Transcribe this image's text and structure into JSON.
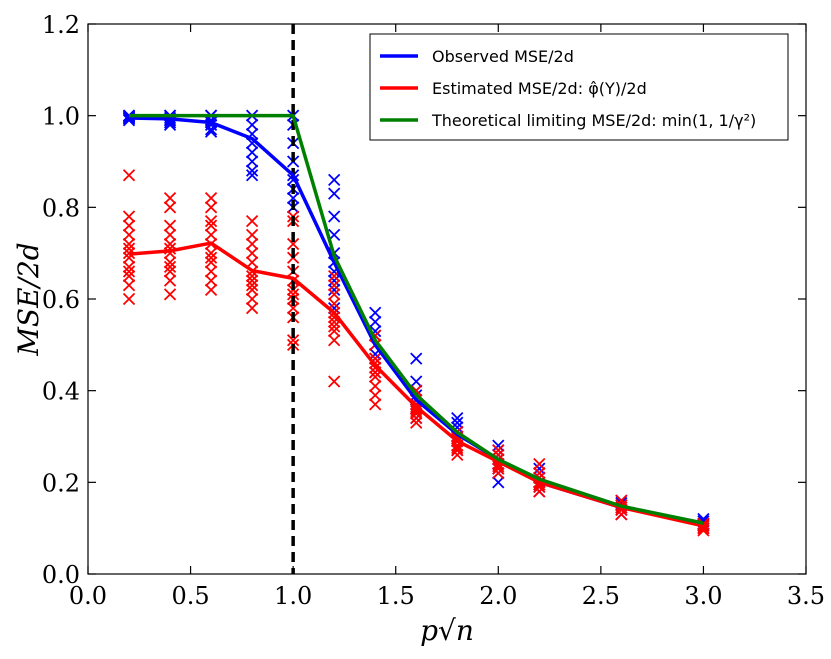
{
  "chart_data": {
    "type": "line",
    "title": "",
    "xlabel": "p√n",
    "ylabel": "MSE/2d",
    "xlim": [
      0.0,
      3.5
    ],
    "ylim": [
      0.0,
      1.2
    ],
    "xticks": [
      "0.0",
      "0.5",
      "1.0",
      "1.5",
      "2.0",
      "2.5",
      "3.0",
      "3.5"
    ],
    "yticks": [
      "0.0",
      "0.2",
      "0.4",
      "0.6",
      "0.8",
      "1.0",
      "1.2"
    ],
    "grid": false,
    "legend_position": "top-right",
    "vline": {
      "x": 1.0,
      "style": "dashed",
      "color": "#000000"
    },
    "x": [
      0.2,
      0.4,
      0.6,
      0.8,
      1.0,
      1.2,
      1.4,
      1.6,
      1.8,
      2.0,
      2.2,
      2.6,
      3.0
    ],
    "series": [
      {
        "name": "Observed MSE/2d",
        "legend_text": "Observed MSE/2d",
        "color": "#0000ff",
        "values": [
          0.995,
          0.993,
          0.985,
          0.95,
          0.87,
          0.68,
          0.5,
          0.38,
          0.305,
          0.25,
          0.2,
          0.145,
          0.11
        ],
        "scatter": [
          [
            0.99,
            1.0,
            0.995,
            0.998,
            0.993,
            1.0,
            0.997
          ],
          [
            0.985,
            1.0,
            0.99,
            0.995,
            0.98,
            1.0,
            0.99
          ],
          [
            0.97,
            1.0,
            0.99,
            0.98,
            0.965,
            1.0,
            0.985
          ],
          [
            0.87,
            0.9,
            0.94,
            0.96,
            0.98,
            1.0,
            0.92,
            0.88
          ],
          [
            0.8,
            0.84,
            0.87,
            0.9,
            0.94,
            0.98,
            1.0,
            0.82,
            0.86
          ],
          [
            0.58,
            0.62,
            0.66,
            0.7,
            0.74,
            0.78,
            0.83,
            0.86,
            0.64,
            0.68
          ],
          [
            0.44,
            0.47,
            0.5,
            0.53,
            0.55,
            0.57,
            0.48,
            0.52
          ],
          [
            0.34,
            0.36,
            0.38,
            0.4,
            0.42,
            0.47,
            0.37,
            0.39
          ],
          [
            0.27,
            0.29,
            0.31,
            0.32,
            0.33,
            0.34,
            0.3,
            0.28
          ],
          [
            0.2,
            0.22,
            0.24,
            0.26,
            0.27,
            0.28,
            0.23,
            0.25
          ],
          [
            0.18,
            0.19,
            0.2,
            0.21,
            0.22,
            0.23,
            0.195
          ],
          [
            0.13,
            0.14,
            0.15,
            0.155,
            0.16,
            0.145
          ],
          [
            0.1,
            0.105,
            0.11,
            0.115,
            0.12,
            0.108
          ]
        ]
      },
      {
        "name": "Estimated MSE/2d: φ̂(Y)/2d",
        "legend_text": "Estimated MSE/2d: φ̂(Y)/2d",
        "color": "#ff0000",
        "values": [
          0.698,
          0.705,
          0.722,
          0.662,
          0.645,
          0.57,
          0.455,
          0.365,
          0.29,
          0.245,
          0.2,
          0.145,
          0.105
        ],
        "scatter": [
          [
            0.6,
            0.63,
            0.65,
            0.67,
            0.69,
            0.7,
            0.72,
            0.74,
            0.76,
            0.78,
            0.87,
            0.66,
            0.71
          ],
          [
            0.61,
            0.64,
            0.66,
            0.68,
            0.7,
            0.72,
            0.74,
            0.76,
            0.8,
            0.82,
            0.67,
            0.71
          ],
          [
            0.62,
            0.64,
            0.66,
            0.69,
            0.72,
            0.74,
            0.76,
            0.77,
            0.8,
            0.82,
            0.68,
            0.7
          ],
          [
            0.58,
            0.6,
            0.62,
            0.64,
            0.66,
            0.68,
            0.7,
            0.72,
            0.74,
            0.77,
            0.63,
            0.65
          ],
          [
            0.5,
            0.51,
            0.56,
            0.58,
            0.61,
            0.64,
            0.66,
            0.69,
            0.72,
            0.77,
            0.78,
            0.6,
            0.62
          ],
          [
            0.42,
            0.51,
            0.53,
            0.55,
            0.57,
            0.59,
            0.61,
            0.63,
            0.65,
            0.54,
            0.56
          ],
          [
            0.37,
            0.39,
            0.41,
            0.43,
            0.45,
            0.47,
            0.5,
            0.52,
            0.44,
            0.46
          ],
          [
            0.33,
            0.34,
            0.35,
            0.36,
            0.37,
            0.38,
            0.4,
            0.355,
            0.365
          ],
          [
            0.26,
            0.27,
            0.28,
            0.29,
            0.3,
            0.31,
            0.275,
            0.295
          ],
          [
            0.22,
            0.23,
            0.24,
            0.25,
            0.26,
            0.27,
            0.235
          ],
          [
            0.18,
            0.19,
            0.2,
            0.21,
            0.22,
            0.24,
            0.195
          ],
          [
            0.13,
            0.14,
            0.15,
            0.16,
            0.145
          ],
          [
            0.095,
            0.1,
            0.105,
            0.11,
            0.1
          ]
        ]
      },
      {
        "name": "Theoretical limiting MSE/2d: min(1, 1/γ²)",
        "legend_text": "Theoretical limiting MSE/2d: min(1, 1/γ²)",
        "color": "#008000",
        "values": [
          1.0,
          1.0,
          1.0,
          1.0,
          1.0,
          0.694,
          0.51,
          0.391,
          0.309,
          0.25,
          0.207,
          0.148,
          0.111
        ]
      }
    ]
  }
}
